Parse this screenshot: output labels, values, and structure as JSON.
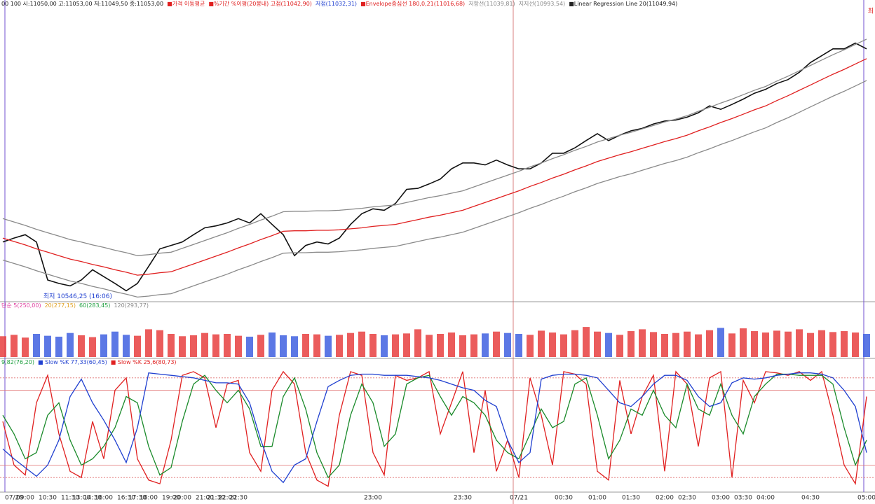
{
  "chart_data": [
    {
      "type": "line",
      "legend": [
        {
          "text": "00 100 시:11050,00 고:11053,00 저:11049,50 종:11053,00",
          "color": "#222222"
        },
        {
          "text": "■가격 이동평균",
          "color": "#e02020"
        },
        {
          "text": "■%기간 %이평(20봉내) 고점(11042,90)",
          "color": "#e02020"
        },
        {
          "text": "저점(11032,31)",
          "color": "#2040d0"
        },
        {
          "text": "■Envelope중심선 180,0,21(11016,68)",
          "color": "#e02020"
        },
        {
          "text": "저항선(11039,81)",
          "color": "#888888"
        },
        {
          "text": "지지선(10993,54)",
          "color": "#888888"
        },
        {
          "text": "■Linear Regression Line 20(11049,94)",
          "color": "#222222"
        }
      ],
      "corner_text": "최",
      "annotation": "최저 10546,25 (16:06)",
      "ylim": [
        10525,
        11125
      ],
      "series": [
        {
          "color": "#111111",
          "values": [
            10646,
            10654,
            10661,
            10646,
            10568,
            10561,
            10556,
            10568,
            10589,
            10575,
            10561,
            10546,
            10561,
            10596,
            10632,
            10639,
            10646,
            10661,
            10675,
            10679,
            10685,
            10694,
            10685,
            10704,
            10682,
            10661,
            10618,
            10639,
            10646,
            10642,
            10654,
            10682,
            10704,
            10714,
            10711,
            10725,
            10754,
            10756,
            10765,
            10775,
            10796,
            10808,
            10808,
            10804,
            10814,
            10804,
            10796,
            10796,
            10808,
            10828,
            10828,
            10839,
            10854,
            10868,
            10854,
            10865,
            10874,
            10879,
            10888,
            10894,
            10896,
            10902,
            10911,
            10925,
            10918,
            10928,
            10939,
            10951,
            10959,
            10971,
            10979,
            10994,
            11014,
            11028,
            11042,
            11042,
            11054,
            11042
          ]
        },
        {
          "color": "#e02020",
          "values": [
            10654,
            10647,
            10640,
            10632,
            10625,
            10618,
            10611,
            10606,
            10600,
            10595,
            10589,
            10584,
            10578,
            10580,
            10583,
            10585,
            10593,
            10601,
            10609,
            10617,
            10625,
            10634,
            10642,
            10651,
            10659,
            10668,
            10669,
            10669,
            10670,
            10670,
            10671,
            10673,
            10675,
            10678,
            10680,
            10682,
            10687,
            10692,
            10697,
            10701,
            10706,
            10711,
            10719,
            10727,
            10735,
            10743,
            10751,
            10760,
            10768,
            10777,
            10785,
            10794,
            10802,
            10811,
            10818,
            10825,
            10831,
            10838,
            10845,
            10852,
            10858,
            10865,
            10874,
            10882,
            10891,
            10899,
            10908,
            10917,
            10925,
            10936,
            10946,
            10957,
            10968,
            10979,
            10990,
            11000,
            11011,
            11022
          ]
        },
        {
          "color": "#8a8a8a",
          "values": [
            10694,
            10687,
            10680,
            10672,
            10665,
            10658,
            10651,
            10646,
            10640,
            10635,
            10629,
            10624,
            10618,
            10620,
            10623,
            10625,
            10633,
            10641,
            10649,
            10657,
            10665,
            10674,
            10682,
            10691,
            10699,
            10708,
            10709,
            10709,
            10710,
            10710,
            10711,
            10713,
            10715,
            10718,
            10720,
            10722,
            10727,
            10732,
            10737,
            10741,
            10746,
            10751,
            10759,
            10767,
            10775,
            10783,
            10791,
            10800,
            10808,
            10817,
            10825,
            10834,
            10842,
            10851,
            10858,
            10865,
            10871,
            10878,
            10885,
            10892,
            10898,
            10905,
            10914,
            10922,
            10931,
            10939,
            10948,
            10957,
            10965,
            10976,
            10986,
            10997,
            11008,
            11019,
            11030,
            11040,
            11051,
            11062
          ]
        },
        {
          "color": "#8a8a8a",
          "values": [
            10609,
            10602,
            10595,
            10587,
            10580,
            10573,
            10566,
            10561,
            10555,
            10550,
            10544,
            10539,
            10533,
            10535,
            10538,
            10540,
            10548,
            10556,
            10564,
            10572,
            10580,
            10589,
            10597,
            10606,
            10614,
            10623,
            10624,
            10624,
            10625,
            10625,
            10626,
            10628,
            10630,
            10633,
            10635,
            10637,
            10642,
            10647,
            10652,
            10656,
            10661,
            10666,
            10674,
            10682,
            10690,
            10698,
            10706,
            10715,
            10723,
            10732,
            10740,
            10749,
            10757,
            10766,
            10773,
            10780,
            10786,
            10793,
            10800,
            10807,
            10813,
            10820,
            10829,
            10837,
            10846,
            10854,
            10863,
            10872,
            10880,
            10891,
            10901,
            10912,
            10923,
            10934,
            10945,
            10955,
            10966,
            10977
          ]
        }
      ]
    },
    {
      "type": "bar",
      "legend": [
        {
          "text": "단순 5(250,00)",
          "color": "#e040a0"
        },
        {
          "text": "20(277,15)",
          "color": "#e0a020"
        },
        {
          "text": "60(283,45)",
          "color": "#20a040"
        },
        {
          "text": "120(293,77)",
          "color": "#888888"
        }
      ],
      "ylim": [
        0,
        100
      ],
      "up_color": "#e84040",
      "down_color": "#4060e0",
      "values": [
        45,
        48,
        42,
        50,
        46,
        44,
        52,
        47,
        43,
        49,
        55,
        48,
        46,
        60,
        58,
        50,
        45,
        47,
        52,
        49,
        50,
        46,
        44,
        48,
        53,
        47,
        45,
        50,
        49,
        46,
        48,
        52,
        55,
        50,
        47,
        49,
        51,
        60,
        48,
        50,
        53,
        47,
        49,
        51,
        55,
        52,
        50,
        48,
        57,
        53,
        49,
        58,
        65,
        55,
        52,
        48,
        56,
        60,
        54,
        50,
        52,
        55,
        49,
        58,
        63,
        51,
        62,
        56,
        53,
        57,
        55,
        60,
        52,
        58,
        54,
        56,
        53,
        50
      ]
    },
    {
      "type": "line",
      "legend": [
        {
          "text": "9,82(76,20)",
          "color": "#20a040"
        },
        {
          "text": "■ Slow %K 77,33(60,45)",
          "color": "#2040d0"
        },
        {
          "text": "■ Slow %K 25,6(80,73)",
          "color": "#e02020"
        }
      ],
      "ylim": [
        0,
        100
      ],
      "levels": [
        10,
        20,
        80,
        90
      ],
      "categories": [
        null,
        "07/20",
        "09:00",
        null,
        "10:30",
        null,
        "11:30",
        "13:00",
        "14:30",
        "16:00",
        null,
        "16:30",
        "17:30",
        "18:00",
        null,
        "19:00",
        "20:00",
        null,
        "21:00",
        "21:30",
        "22:00",
        "22:30",
        null,
        null,
        null,
        null,
        null,
        null,
        null,
        null,
        null,
        null,
        null,
        "23:00",
        null,
        null,
        null,
        null,
        null,
        null,
        null,
        "23:30",
        null,
        null,
        null,
        null,
        "07/21",
        null,
        null,
        null,
        "00:30",
        null,
        null,
        "01:00",
        null,
        null,
        "01:30",
        null,
        null,
        "02:00",
        null,
        "02:30",
        null,
        null,
        "03:00",
        null,
        "03:30",
        null,
        "04:00",
        null,
        null,
        null,
        "04:30",
        null,
        null,
        null,
        null,
        "05:00"
      ],
      "series": [
        {
          "color": "#e02020",
          "values": [
            55,
            20,
            12,
            70,
            92,
            45,
            15,
            10,
            55,
            25,
            80,
            90,
            25,
            8,
            5,
            40,
            92,
            95,
            90,
            50,
            85,
            88,
            30,
            15,
            80,
            95,
            85,
            30,
            8,
            3,
            60,
            95,
            92,
            30,
            12,
            92,
            88,
            90,
            95,
            45,
            70,
            95,
            30,
            80,
            15,
            40,
            10,
            90,
            60,
            20,
            95,
            93,
            85,
            15,
            8,
            88,
            45,
            75,
            92,
            15,
            95,
            85,
            35,
            90,
            95,
            10,
            88,
            70,
            95,
            94,
            92,
            95,
            88,
            95,
            60,
            20,
            5,
            75
          ]
        },
        {
          "color": "#1a8a2a",
          "values": [
            60,
            45,
            25,
            30,
            60,
            70,
            40,
            20,
            25,
            35,
            50,
            75,
            70,
            35,
            12,
            18,
            55,
            85,
            92,
            80,
            70,
            80,
            65,
            35,
            35,
            75,
            90,
            65,
            30,
            10,
            20,
            60,
            85,
            70,
            35,
            45,
            85,
            90,
            92,
            75,
            60,
            75,
            70,
            60,
            40,
            30,
            25,
            45,
            65,
            50,
            55,
            85,
            90,
            60,
            25,
            40,
            65,
            60,
            80,
            60,
            50,
            85,
            65,
            60,
            85,
            60,
            45,
            75,
            85,
            93,
            93,
            92,
            92,
            92,
            85,
            50,
            20,
            40
          ]
        },
        {
          "color": "#2040d0",
          "values": [
            33,
            25,
            18,
            11,
            20,
            40,
            75,
            89,
            70,
            56,
            40,
            22,
            50,
            94,
            93,
            92,
            91,
            90,
            88,
            86,
            86,
            85,
            70,
            40,
            15,
            6,
            20,
            25,
            55,
            83,
            88,
            92,
            93,
            93,
            92,
            92,
            92,
            91,
            90,
            88,
            85,
            82,
            80,
            72,
            67,
            40,
            22,
            30,
            89,
            92,
            93,
            93,
            92,
            90,
            80,
            70,
            67,
            75,
            85,
            92,
            92,
            88,
            75,
            67,
            70,
            86,
            90,
            89,
            90,
            92,
            93,
            94,
            94,
            93,
            90,
            80,
            67,
            30
          ]
        }
      ]
    }
  ]
}
